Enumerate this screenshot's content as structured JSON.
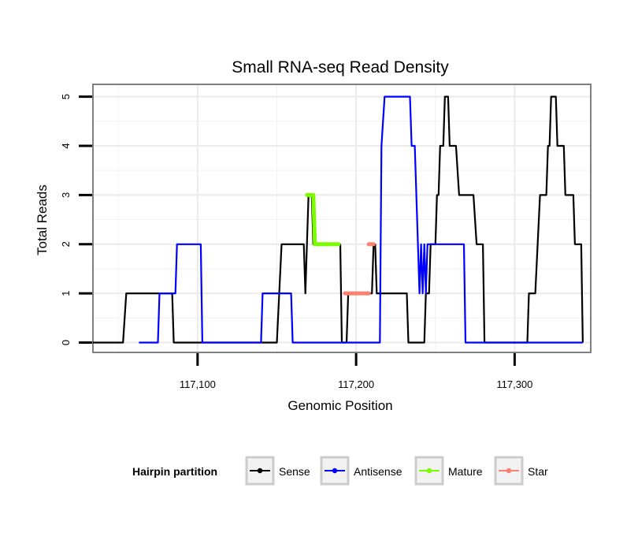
{
  "chart_data": {
    "type": "line",
    "title": "Small RNA-seq Read Density",
    "xlabel": "Genomic Position",
    "ylabel": "Total Reads",
    "xlim": [
      117034,
      117348
    ],
    "ylim": [
      -0.2,
      5.25
    ],
    "x_ticks": [
      117100,
      117200,
      117300
    ],
    "x_tick_labels": [
      "117,100",
      "117,200",
      "117,300"
    ],
    "y_ticks": [
      0,
      1,
      2,
      3,
      4,
      5
    ],
    "y_tick_labels": [
      "0",
      "1",
      "2",
      "3",
      "4",
      "5"
    ],
    "grid": true,
    "legend": {
      "title": "Hairpin partition",
      "position": "bottom",
      "entries": [
        {
          "name": "Sense",
          "color": "#000000"
        },
        {
          "name": "Antisense",
          "color": "#0000ff"
        },
        {
          "name": "Mature",
          "color": "#7cfc00"
        },
        {
          "name": "Star",
          "color": "#fa8072"
        }
      ]
    },
    "series": [
      {
        "name": "Sense",
        "color": "#000000",
        "width": 2.2,
        "x": [
          117034,
          117053,
          117055,
          117082,
          117083,
          117084,
          117085,
          117150,
          117153,
          117167,
          117168,
          117170,
          117171,
          117172,
          117173,
          117190,
          117191,
          117194,
          117195,
          117210,
          117211,
          117212,
          117213,
          117232,
          117233,
          117243,
          117244,
          117246,
          117247,
          117250,
          117251,
          117252,
          117253,
          117255,
          117256,
          117258,
          117259,
          117263,
          117265,
          117266,
          117267,
          117274,
          117276,
          117277,
          117278,
          117280,
          117281,
          117308,
          117309,
          117313,
          117316,
          117320,
          117321,
          117322,
          117323,
          117326,
          117327,
          117331,
          117332,
          117337,
          117338,
          117342,
          117343
        ],
        "y": [
          0,
          0,
          1,
          1,
          1,
          1,
          0,
          0,
          2,
          2,
          1,
          3,
          3,
          3,
          2,
          2,
          0,
          0,
          1,
          1,
          2,
          2,
          1,
          1,
          0,
          0,
          1,
          1,
          2,
          2,
          3,
          3,
          4,
          4,
          5,
          5,
          4,
          4,
          3,
          3,
          3,
          3,
          2,
          2,
          2,
          2,
          0,
          0,
          1,
          1,
          3,
          3,
          4,
          4,
          5,
          5,
          4,
          4,
          3,
          3,
          2,
          2,
          0
        ]
      },
      {
        "name": "Antisense",
        "color": "#0000ff",
        "width": 2.2,
        "x": [
          117063,
          117075,
          117076,
          117080,
          117081,
          117083,
          117085,
          117086,
          117087,
          117088,
          117090,
          117100,
          117102,
          117103,
          117105,
          117140,
          117141,
          117158,
          117159,
          117160,
          117161,
          117162,
          117163,
          117215,
          117216,
          117218,
          117219,
          117220,
          117234,
          117235,
          117236,
          117237,
          117240,
          117241,
          117242,
          117243,
          117244,
          117245,
          117246,
          117247,
          117268,
          117269,
          117343
        ],
        "y": [
          0,
          0,
          1,
          1,
          1,
          1,
          1,
          1,
          2,
          2,
          2,
          2,
          2,
          0,
          0,
          0,
          1,
          1,
          1,
          0,
          0,
          0,
          0,
          0,
          4,
          5,
          5,
          5,
          5,
          4,
          4,
          4,
          1,
          2,
          1,
          2,
          1,
          2,
          2,
          2,
          2,
          0,
          0
        ]
      },
      {
        "name": "Mature",
        "color": "#7cfc00",
        "width": 5,
        "x": [
          117169,
          117173,
          117174,
          117175,
          117176,
          117177,
          117178,
          117186,
          117187,
          117188,
          117189
        ],
        "y": [
          3,
          3,
          2,
          2,
          2,
          2,
          2,
          2,
          2,
          2,
          2
        ]
      },
      {
        "name": "Star",
        "color": "#fa8072",
        "width": 5,
        "x": [
          117193,
          117195,
          117200,
          117205,
          117208
        ],
        "y": [
          1,
          1,
          1,
          1,
          1
        ]
      },
      {
        "name": "Star",
        "color": "#fa8072",
        "width": 5,
        "x": [
          117208,
          117210,
          117211
        ],
        "y": [
          2,
          2,
          2
        ]
      }
    ]
  }
}
